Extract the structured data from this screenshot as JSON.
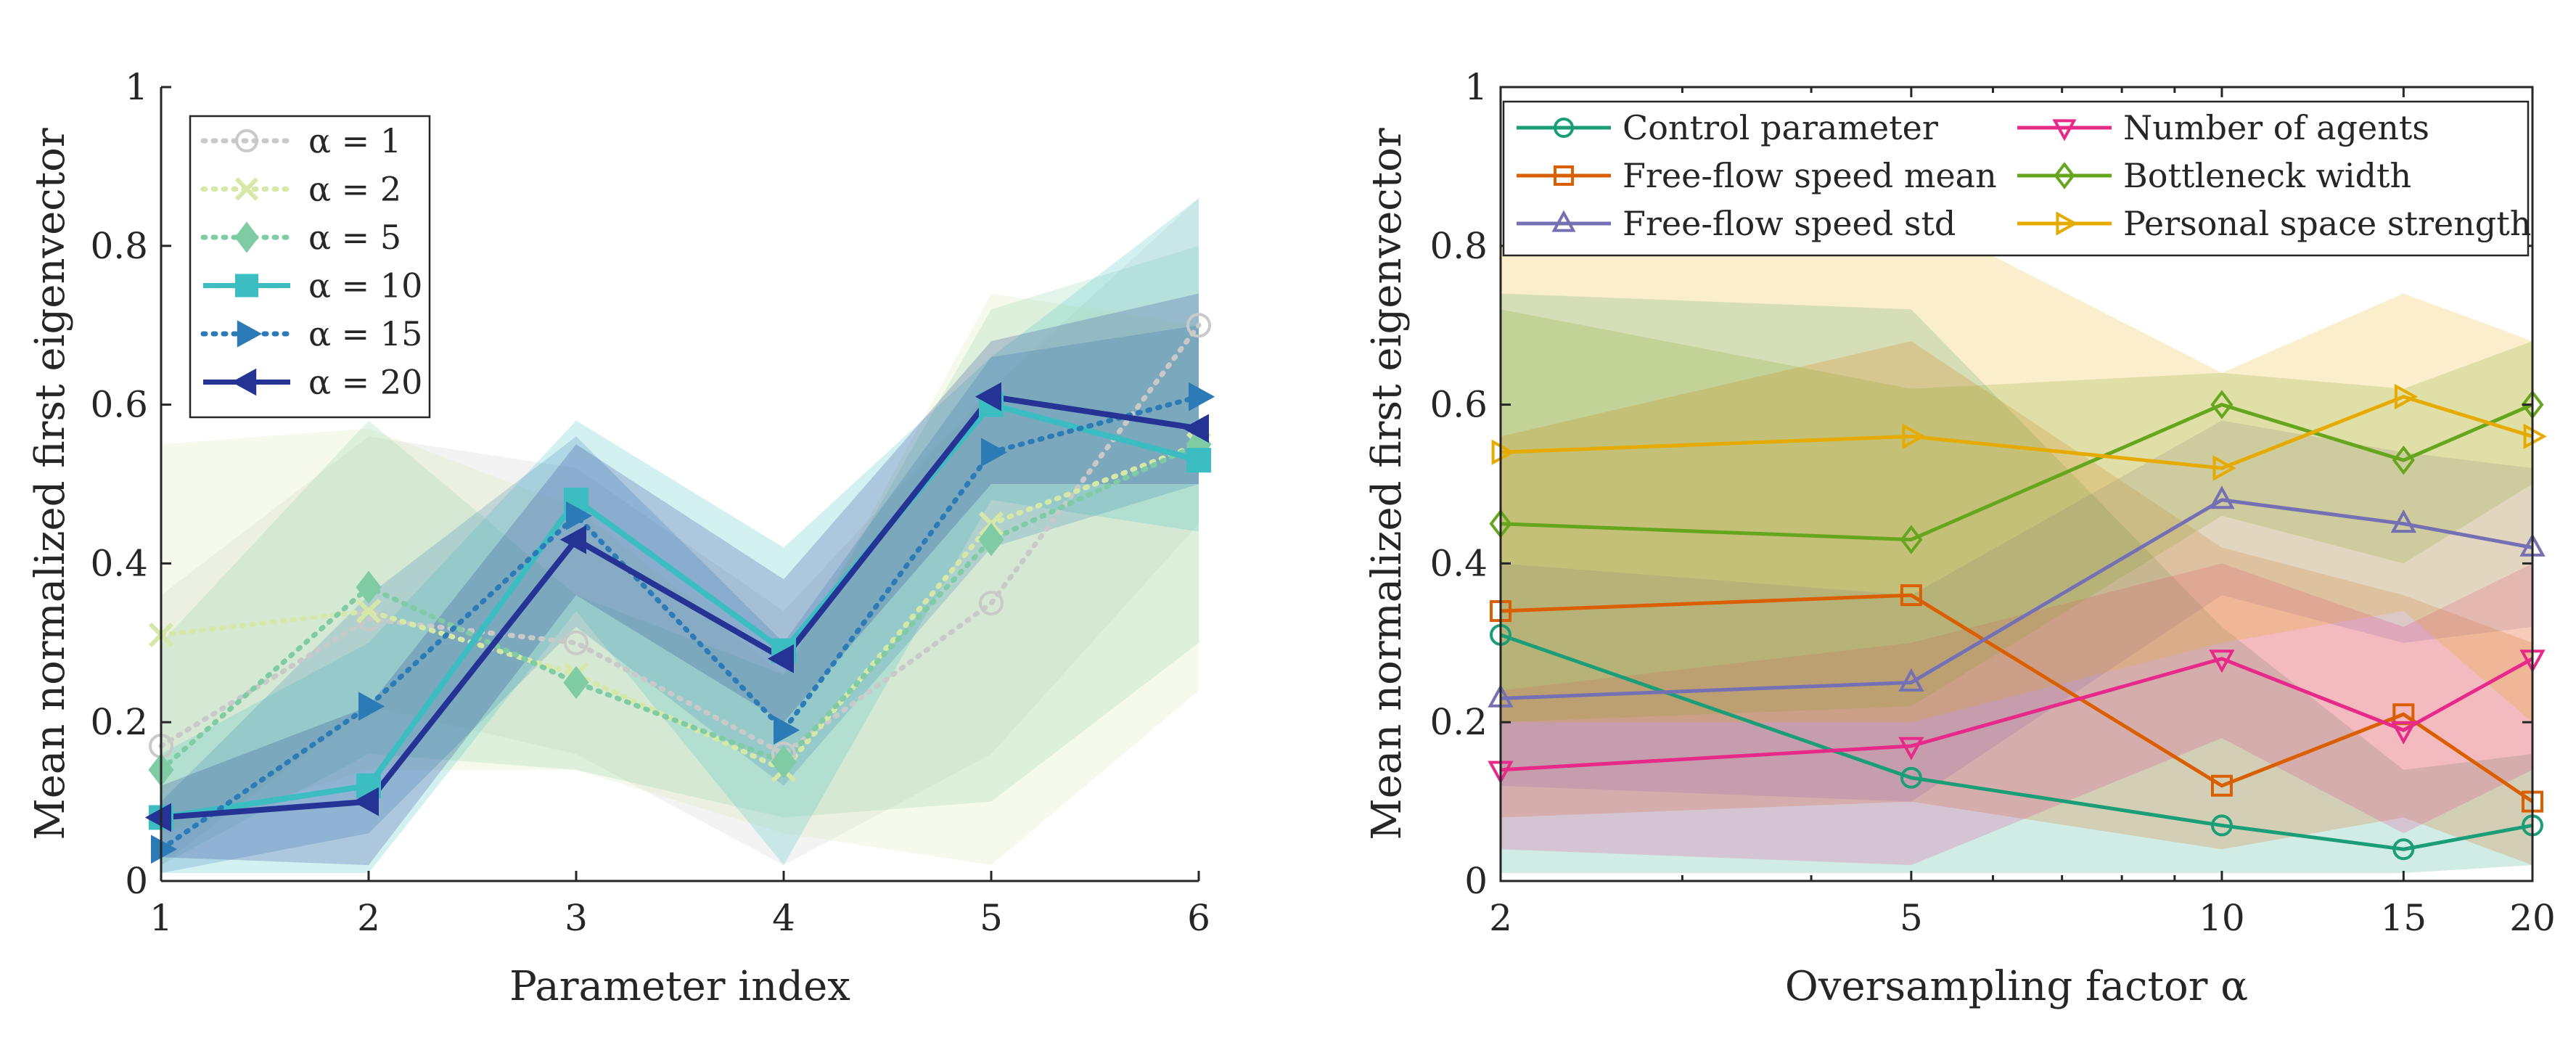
{
  "chart_data": [
    {
      "type": "line",
      "xlabel": "Parameter index",
      "ylabel": "Mean normalized first eigenvector",
      "xlim": [
        1,
        6
      ],
      "ylim": [
        0,
        1
      ],
      "x": [
        1,
        2,
        3,
        4,
        5,
        6
      ],
      "xticks": [
        "1",
        "2",
        "3",
        "4",
        "5",
        "6"
      ],
      "yticks": [
        "0",
        "0.2",
        "0.4",
        "0.6",
        "0.8",
        "1"
      ],
      "legend_position": "top-left",
      "grid": false,
      "series": [
        {
          "name": "α = 1",
          "legend_label": "α = 1",
          "color": "#c9c9c9",
          "dash": "dotted",
          "marker": "circle",
          "values": [
            0.17,
            0.33,
            0.3,
            0.16,
            0.35,
            0.7
          ],
          "lower": [
            0.02,
            0.22,
            0.16,
            0.02,
            0.16,
            0.45
          ],
          "upper": [
            0.36,
            0.56,
            0.52,
            0.34,
            0.62,
            0.86
          ]
        },
        {
          "name": "α = 2",
          "legend_label": "α = 2",
          "color": "#d5e8a8",
          "dash": "dotted",
          "marker": "x",
          "values": [
            0.31,
            0.34,
            0.26,
            0.14,
            0.45,
            0.55
          ],
          "lower": [
            0.06,
            0.14,
            0.14,
            0.06,
            0.02,
            0.24
          ],
          "upper": [
            0.55,
            0.57,
            0.47,
            0.26,
            0.74,
            0.7
          ]
        },
        {
          "name": "α = 5",
          "legend_label": "α = 5",
          "color": "#7fcba4",
          "dash": "dotted",
          "marker": "diamond",
          "values": [
            0.14,
            0.37,
            0.25,
            0.15,
            0.43,
            0.55
          ],
          "lower": [
            0.02,
            0.16,
            0.14,
            0.08,
            0.1,
            0.3
          ],
          "upper": [
            0.3,
            0.58,
            0.36,
            0.26,
            0.72,
            0.8
          ]
        },
        {
          "name": "α = 10",
          "legend_label": "α = 10",
          "color": "#3bbdc2",
          "dash": "solid",
          "marker": "square",
          "values": [
            0.08,
            0.12,
            0.48,
            0.29,
            0.6,
            0.53
          ],
          "lower": [
            0.01,
            0.01,
            0.34,
            0.02,
            0.48,
            0.44
          ],
          "upper": [
            0.16,
            0.3,
            0.58,
            0.42,
            0.66,
            0.86
          ]
        },
        {
          "name": "α = 15",
          "legend_label": "α = 15",
          "color": "#2c7bb6",
          "dash": "dotted",
          "marker": "triangle-right",
          "values": [
            0.04,
            0.22,
            0.46,
            0.19,
            0.54,
            0.61
          ],
          "lower": [
            0.01,
            0.06,
            0.32,
            0.12,
            0.42,
            0.5
          ],
          "upper": [
            0.1,
            0.36,
            0.56,
            0.3,
            0.66,
            0.7
          ]
        },
        {
          "name": "α = 20",
          "legend_label": "α = 20",
          "color": "#253494",
          "dash": "solid",
          "marker": "triangle-left",
          "values": [
            0.08,
            0.1,
            0.43,
            0.28,
            0.61,
            0.57
          ],
          "lower": [
            0.03,
            0.02,
            0.36,
            0.2,
            0.5,
            0.5
          ],
          "upper": [
            0.12,
            0.22,
            0.55,
            0.38,
            0.68,
            0.74
          ]
        }
      ]
    },
    {
      "type": "line",
      "xlabel": "Oversampling factor α",
      "ylabel": "Mean normalized first eigenvector",
      "xscale": "log",
      "xlim": [
        2,
        20
      ],
      "ylim": [
        0,
        1
      ],
      "x": [
        2,
        5,
        10,
        15,
        20
      ],
      "xticks": [
        "2",
        "5",
        "10",
        "15",
        "20"
      ],
      "yticks": [
        "0",
        "0.2",
        "0.4",
        "0.6",
        "0.8",
        "1"
      ],
      "legend_position": "top",
      "grid": false,
      "series": [
        {
          "name": "Control parameter",
          "legend_label": "Control parameter",
          "color": "#1b9e77",
          "marker": "circle",
          "values": [
            0.31,
            0.13,
            0.07,
            0.04,
            0.07
          ],
          "lower": [
            0.01,
            0.01,
            0.01,
            0.01,
            0.02
          ],
          "upper": [
            0.74,
            0.72,
            0.32,
            0.14,
            0.16
          ]
        },
        {
          "name": "Free-flow speed mean",
          "legend_label": "Free-flow speed mean",
          "color": "#d95f02",
          "marker": "square",
          "values": [
            0.34,
            0.36,
            0.12,
            0.21,
            0.1
          ],
          "lower": [
            0.08,
            0.1,
            0.04,
            0.08,
            0.02
          ],
          "upper": [
            0.56,
            0.68,
            0.42,
            0.36,
            0.3
          ]
        },
        {
          "name": "Free-flow speed std",
          "legend_label": "Free-flow speed std",
          "color": "#7570b3",
          "marker": "triangle-up",
          "values": [
            0.23,
            0.25,
            0.48,
            0.45,
            0.42
          ],
          "lower": [
            0.12,
            0.1,
            0.36,
            0.3,
            0.32
          ],
          "upper": [
            0.4,
            0.36,
            0.58,
            0.54,
            0.52
          ]
        },
        {
          "name": "Number of agents",
          "legend_label": "Number of agents",
          "color": "#e7298a",
          "marker": "triangle-down",
          "values": [
            0.14,
            0.17,
            0.28,
            0.19,
            0.28
          ],
          "lower": [
            0.04,
            0.02,
            0.18,
            0.06,
            0.14
          ],
          "upper": [
            0.24,
            0.3,
            0.4,
            0.32,
            0.4
          ]
        },
        {
          "name": "Bottleneck width",
          "legend_label": "Bottleneck width",
          "color": "#66a61e",
          "marker": "diamond",
          "values": [
            0.45,
            0.43,
            0.6,
            0.53,
            0.6
          ],
          "lower": [
            0.2,
            0.22,
            0.46,
            0.4,
            0.5
          ],
          "upper": [
            0.72,
            0.62,
            0.64,
            0.62,
            0.68
          ]
        },
        {
          "name": "Personal space strength",
          "legend_label": "Personal space strength",
          "color": "#e6ab02",
          "marker": "triangle-right",
          "values": [
            0.54,
            0.56,
            0.52,
            0.61,
            0.56
          ],
          "lower": [
            0.2,
            0.2,
            0.3,
            0.34,
            0.2
          ],
          "upper": [
            0.8,
            0.84,
            0.64,
            0.74,
            0.68
          ]
        }
      ]
    }
  ]
}
